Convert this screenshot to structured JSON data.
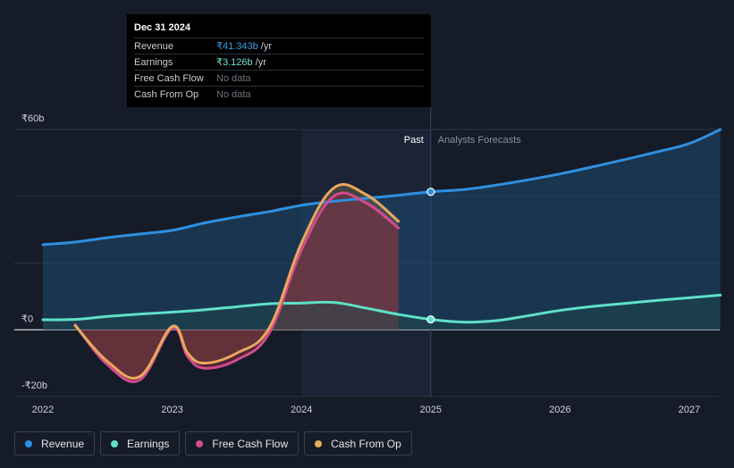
{
  "tooltip": {
    "date": "Dec 31 2024",
    "rows": [
      {
        "label": "Revenue",
        "value": "₹41.343b",
        "unit": "/yr",
        "color": "#3b9fe8"
      },
      {
        "label": "Earnings",
        "value": "₹3.126b",
        "unit": "/yr",
        "color": "#6fe3cf"
      },
      {
        "label": "Free Cash Flow",
        "value": "No data",
        "unit": ""
      },
      {
        "label": "Cash From Op",
        "value": "No data",
        "unit": ""
      }
    ]
  },
  "legend": [
    {
      "label": "Revenue",
      "color": "#2f8fe0"
    },
    {
      "label": "Earnings",
      "color": "#5fe0c8"
    },
    {
      "label": "Free Cash Flow",
      "color": "#d24b8e"
    },
    {
      "label": "Cash From Op",
      "color": "#e8a95c"
    }
  ],
  "chart_data": {
    "type": "line",
    "ylim": [
      -20,
      60
    ],
    "xlim": [
      2021.77,
      2027.24
    ],
    "y_tick_labels": [
      "₹60b",
      "₹0",
      "-₹20b"
    ],
    "y_ticks": [
      60,
      0,
      -20
    ],
    "x_ticks": [
      2022,
      2023,
      2024,
      2025,
      2026,
      2027
    ],
    "x_tick_labels": [
      "2022",
      "2023",
      "2024",
      "2025",
      "2026",
      "2027"
    ],
    "divider": 2025,
    "past_label": "Past",
    "forecast_label": "Analysts Forecasts",
    "series": [
      {
        "name": "Revenue",
        "color": "#2f8fe0",
        "x": [
          2022.0,
          2022.25,
          2022.5,
          2022.75,
          2023.0,
          2023.25,
          2023.5,
          2023.75,
          2024.0,
          2024.25,
          2024.5,
          2024.75,
          2025.0,
          2025.25,
          2025.5,
          2025.75,
          2026.0,
          2026.25,
          2026.5,
          2026.75,
          2027.0,
          2027.24
        ],
        "y": [
          25.5,
          26.3,
          27.6,
          28.7,
          29.8,
          32.0,
          33.8,
          35.4,
          37.3,
          38.5,
          39.4,
          40.3,
          41.343,
          42.0,
          43.3,
          44.9,
          46.7,
          48.8,
          51.0,
          53.3,
          55.8,
          60.0
        ]
      },
      {
        "name": "Earnings",
        "color": "#5fe0c8",
        "x": [
          2022.0,
          2022.25,
          2022.5,
          2022.75,
          2023.0,
          2023.25,
          2023.5,
          2023.75,
          2024.0,
          2024.25,
          2024.5,
          2024.75,
          2025.0,
          2025.25,
          2025.5,
          2025.75,
          2026.0,
          2026.25,
          2026.5,
          2026.75,
          2027.0,
          2027.24
        ],
        "y": [
          3.0,
          3.1,
          4.0,
          4.7,
          5.3,
          6.0,
          6.9,
          7.8,
          8.0,
          8.2,
          6.5,
          4.6,
          3.126,
          2.3,
          2.7,
          4.2,
          5.8,
          7.0,
          7.9,
          8.8,
          9.6,
          10.4
        ]
      },
      {
        "name": "Free Cash Flow",
        "color": "#d24b8e",
        "x": [
          2022.25,
          2022.5,
          2022.75,
          2023.0,
          2023.12,
          2023.25,
          2023.5,
          2023.75,
          2024.0,
          2024.25,
          2024.5,
          2024.75
        ],
        "y": [
          1.5,
          -10.5,
          -15.0,
          0.5,
          -8.0,
          -11.5,
          -9.0,
          -1.0,
          24.0,
          40.0,
          38.0,
          30.5
        ]
      },
      {
        "name": "Cash From Op",
        "color": "#e8a95c",
        "x": [
          2022.25,
          2022.5,
          2022.75,
          2023.0,
          2023.12,
          2023.25,
          2023.5,
          2023.75,
          2024.0,
          2024.25,
          2024.5,
          2024.75
        ],
        "y": [
          1.2,
          -9.5,
          -14.0,
          1.0,
          -7.0,
          -10.0,
          -7.0,
          0.5,
          26.0,
          42.5,
          40.5,
          32.5
        ]
      }
    ],
    "highlight_points": [
      {
        "series": "Revenue",
        "x": 2025.0,
        "y": 41.343
      },
      {
        "series": "Earnings",
        "x": 2025.0,
        "y": 3.126
      }
    ]
  }
}
